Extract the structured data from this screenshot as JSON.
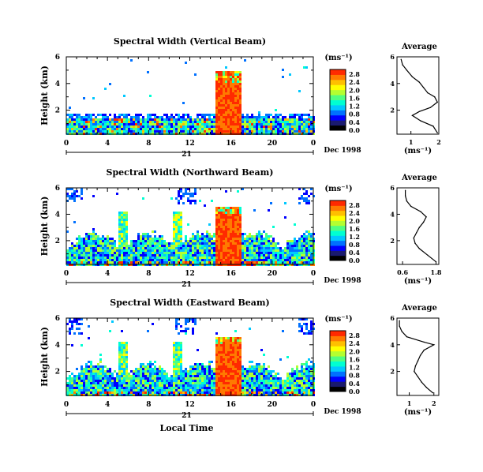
{
  "colors": {
    "scale": [
      "#000000",
      "#1a1a6e",
      "#0000ff",
      "#0070ff",
      "#00c8ff",
      "#00ffd2",
      "#50ff80",
      "#b4ff30",
      "#ffff00",
      "#ffc000",
      "#ff7a00",
      "#ff2a00"
    ],
    "background": "#ffffff",
    "ink": "#000000"
  },
  "footer": {
    "xlabel": "Local Time"
  },
  "chart_data": [
    {
      "type": "heatmap",
      "title": "Spectral Width (Vertical Beam)",
      "ylabel": "Height (km)",
      "xlabel": "Local Time",
      "x_ticks": [
        "0",
        "4",
        "8",
        "12",
        "16",
        "20",
        "0"
      ],
      "day_label": "21",
      "date_label": "Dec 1998",
      "y_ticks": [
        "2",
        "4",
        "6"
      ],
      "x_range_hours": [
        0,
        24
      ],
      "y_range_km": [
        0.2,
        6
      ],
      "colorbar": {
        "unit": "(ms⁻¹)",
        "ticks": [
          "0.0",
          "0.4",
          "0.8",
          "1.2",
          "1.6",
          "2.0",
          "2.4",
          "2.8"
        ]
      },
      "average_profile": {
        "title": "Average",
        "xlabel": "(ms⁻¹)",
        "x_ticks": [
          "1",
          "2"
        ],
        "x_range": [
          0.5,
          2.0
        ],
        "y_ticks": [
          "2",
          "4",
          "6"
        ],
        "height_km": [
          0.3,
          0.8,
          1.2,
          1.6,
          1.9,
          2.2,
          2.6,
          3.0,
          3.3,
          3.7,
          4.1,
          4.5,
          5.0,
          5.4,
          5.8
        ],
        "width": [
          1.95,
          1.8,
          1.35,
          1.05,
          1.3,
          1.7,
          1.95,
          1.85,
          1.6,
          1.45,
          1.3,
          1.05,
          0.85,
          0.7,
          0.65
        ]
      }
    },
    {
      "type": "heatmap",
      "title": "Spectral Width (Northward Beam)",
      "ylabel": "Height (km)",
      "xlabel": "Local Time",
      "x_ticks": [
        "0",
        "4",
        "8",
        "12",
        "16",
        "20",
        "0"
      ],
      "day_label": "21",
      "date_label": "Dec 1998",
      "y_ticks": [
        "2",
        "4",
        "6"
      ],
      "x_range_hours": [
        0,
        24
      ],
      "y_range_km": [
        0.2,
        6
      ],
      "colorbar": {
        "unit": "(ms⁻¹)",
        "ticks": [
          "0.0",
          "0.4",
          "0.8",
          "1.2",
          "1.6",
          "2.0",
          "2.4",
          "2.8"
        ]
      },
      "average_profile": {
        "title": "Average",
        "xlabel": "(ms⁻¹)",
        "x_ticks": [
          "0.6",
          "1.8"
        ],
        "x_range": [
          0.4,
          1.9
        ],
        "y_ticks": [
          "2",
          "4",
          "6"
        ],
        "height_km": [
          0.4,
          0.9,
          1.4,
          1.8,
          2.2,
          2.6,
          3.0,
          3.4,
          3.8,
          4.2,
          4.6,
          5.0,
          5.4,
          5.8
        ],
        "width": [
          1.8,
          1.5,
          1.2,
          1.05,
          1.0,
          1.1,
          1.2,
          1.35,
          1.45,
          1.25,
          0.9,
          0.75,
          0.7,
          0.7
        ]
      }
    },
    {
      "type": "heatmap",
      "title": "Spectral Width (Eastward Beam)",
      "ylabel": "Height (km)",
      "xlabel": "Local Time",
      "x_ticks": [
        "0",
        "4",
        "8",
        "12",
        "16",
        "20",
        "0"
      ],
      "day_label": "21",
      "date_label": "Dec 1998",
      "y_ticks": [
        "2",
        "4",
        "6"
      ],
      "x_range_hours": [
        0,
        24
      ],
      "y_range_km": [
        0.2,
        6
      ],
      "colorbar": {
        "unit": "(ms⁻¹)",
        "ticks": [
          "0.0",
          "0.4",
          "0.8",
          "1.2",
          "1.6",
          "2.0",
          "2.4",
          "2.8"
        ]
      },
      "average_profile": {
        "title": "Average",
        "xlabel": "(ms⁻¹)",
        "x_ticks": [
          "1",
          "2"
        ],
        "x_range": [
          0.5,
          2.2
        ],
        "y_ticks": [
          "2",
          "4",
          "6"
        ],
        "height_km": [
          0.4,
          0.8,
          1.2,
          1.6,
          2.0,
          2.4,
          2.8,
          3.2,
          3.6,
          4.0,
          4.2,
          4.6,
          5.0,
          5.4,
          5.8
        ],
        "width": [
          1.95,
          1.7,
          1.5,
          1.35,
          1.2,
          1.25,
          1.35,
          1.45,
          1.6,
          2.0,
          1.6,
          0.9,
          0.7,
          0.6,
          0.6
        ]
      }
    }
  ]
}
